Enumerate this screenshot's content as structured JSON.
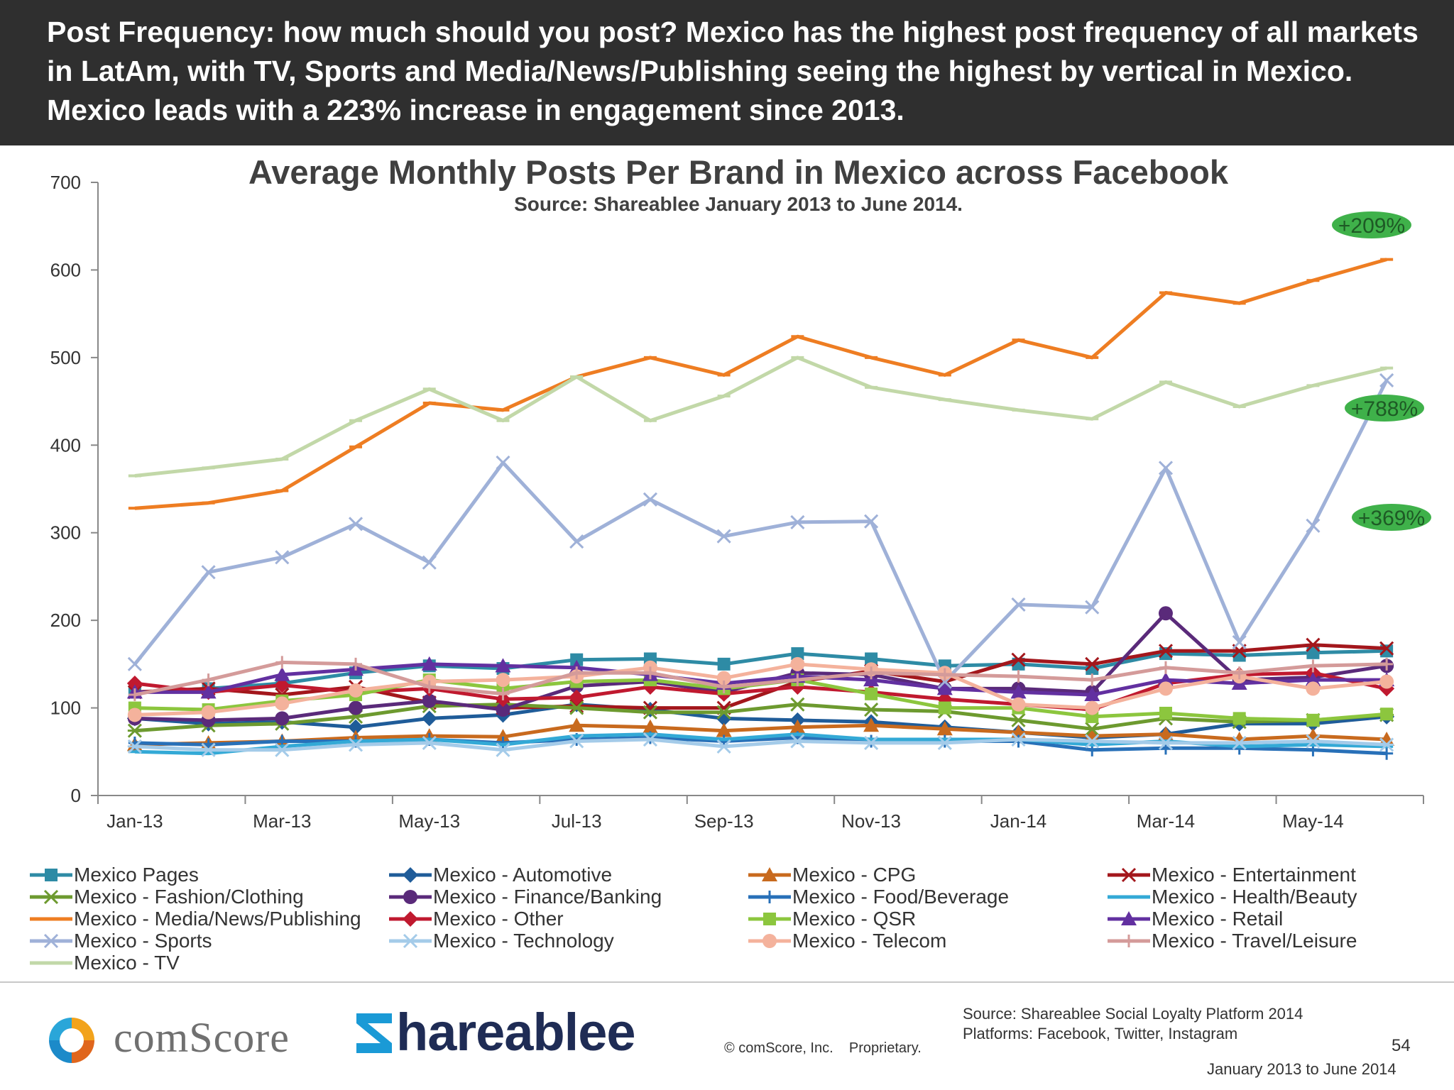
{
  "header": {
    "text": "Post Frequency: how much should you post? Mexico has the highest post frequency of all markets in LatAm, with TV, Sports and Media/News/Publishing seeing the highest by vertical in Mexico. Mexico leads with a 223% increase in engagement since 2013."
  },
  "chart_data": {
    "type": "line",
    "title": "Average Monthly Posts Per Brand in Mexico across Facebook",
    "subtitle": "Source: Shareablee January 2013 to June 2014.",
    "xlabel": "",
    "ylabel": "",
    "ylim": [
      0,
      700
    ],
    "yticks": [
      "0",
      "100",
      "200",
      "300",
      "400",
      "500",
      "600",
      "700"
    ],
    "x": [
      "Jan-13",
      "Feb-13",
      "Mar-13",
      "Apr-13",
      "May-13",
      "Jun-13",
      "Jul-13",
      "Aug-13",
      "Sep-13",
      "Oct-13",
      "Nov-13",
      "Dec-13",
      "Jan-14",
      "Feb-14",
      "Mar-14",
      "Apr-14",
      "May-14",
      "Jun-14"
    ],
    "xtick_labels": [
      "Jan-13",
      "Mar-13",
      "May-13",
      "Jul-13",
      "Sep-13",
      "Nov-13",
      "Jan-14",
      "Mar-14",
      "May-14"
    ],
    "legend_position": "bottom",
    "grid": false,
    "series": [
      {
        "name": "Mexico Pages",
        "color": "#2e8ba5",
        "marker": "square",
        "values": [
          118,
          122,
          128,
          140,
          148,
          145,
          155,
          156,
          150,
          162,
          156,
          148,
          150,
          145,
          162,
          160,
          163,
          165
        ]
      },
      {
        "name": "Mexico - Automotive",
        "color": "#1f5c99",
        "marker": "diamond",
        "values": [
          88,
          82,
          84,
          78,
          88,
          92,
          104,
          98,
          88,
          86,
          84,
          78,
          72,
          66,
          70,
          82,
          82,
          90
        ]
      },
      {
        "name": "Mexico - CPG",
        "color": "#c86a1e",
        "marker": "triangle",
        "values": [
          58,
          60,
          62,
          66,
          68,
          67,
          80,
          78,
          74,
          78,
          80,
          76,
          72,
          68,
          70,
          64,
          68,
          64
        ]
      },
      {
        "name": "Mexico - Entertainment",
        "color": "#a3171c",
        "marker": "x",
        "values": [
          118,
          122,
          115,
          124,
          106,
          100,
          102,
          100,
          100,
          130,
          142,
          130,
          155,
          150,
          165,
          165,
          172,
          168
        ]
      },
      {
        "name": "Mexico - Fashion/Clothing",
        "color": "#6d9a2f",
        "marker": "asterisk",
        "values": [
          74,
          80,
          82,
          90,
          102,
          104,
          100,
          95,
          95,
          104,
          98,
          96,
          86,
          76,
          88,
          84,
          86,
          92
        ]
      },
      {
        "name": "Mexico - Finance/Banking",
        "color": "#5a2a7a",
        "marker": "circle",
        "values": [
          88,
          86,
          88,
          100,
          108,
          98,
          125,
          130,
          118,
          140,
          138,
          122,
          122,
          118,
          208,
          132,
          135,
          148
        ]
      },
      {
        "name": "Mexico - Food/Beverage",
        "color": "#2870b8",
        "marker": "plus",
        "values": [
          60,
          58,
          62,
          62,
          64,
          60,
          64,
          66,
          62,
          66,
          62,
          62,
          62,
          52,
          54,
          54,
          52,
          48
        ]
      },
      {
        "name": "Mexico - Health/Beauty",
        "color": "#33a9d6",
        "marker": "dash",
        "values": [
          50,
          48,
          56,
          62,
          64,
          58,
          68,
          70,
          64,
          70,
          64,
          64,
          64,
          58,
          62,
          56,
          58,
          56
        ]
      },
      {
        "name": "Mexico - Media/News/Publishing",
        "color": "#ee7d22",
        "marker": "dash",
        "values": [
          328,
          334,
          348,
          398,
          448,
          440,
          478,
          500,
          480,
          524,
          500,
          480,
          520,
          500,
          574,
          562,
          588,
          612
        ]
      },
      {
        "name": "Mexico - Other",
        "color": "#c0192f",
        "marker": "diamond",
        "values": [
          128,
          118,
          126,
          118,
          122,
          110,
          112,
          124,
          116,
          124,
          118,
          110,
          104,
          98,
          128,
          138,
          140,
          122
        ]
      },
      {
        "name": "Mexico - QSR",
        "color": "#8cc63e",
        "marker": "square",
        "values": [
          100,
          98,
          108,
          115,
          132,
          122,
          130,
          132,
          122,
          132,
          116,
          100,
          100,
          90,
          94,
          88,
          86,
          93
        ]
      },
      {
        "name": "Mexico - Retail",
        "color": "#6230a0",
        "marker": "triangle",
        "values": [
          118,
          118,
          138,
          144,
          150,
          148,
          146,
          138,
          128,
          136,
          132,
          122,
          118,
          115,
          132,
          128,
          132,
          132
        ]
      },
      {
        "name": "Mexico - Sports",
        "color": "#9fb1d8",
        "marker": "x",
        "values": [
          150,
          255,
          272,
          310,
          266,
          380,
          290,
          338,
          296,
          312,
          313,
          130,
          218,
          215,
          374,
          175,
          308,
          474
        ]
      },
      {
        "name": "Mexico - Technology",
        "color": "#a4cbe9",
        "marker": "asterisk",
        "values": [
          56,
          52,
          52,
          58,
          60,
          52,
          62,
          64,
          56,
          62,
          60,
          60,
          64,
          62,
          60,
          60,
          62,
          58
        ]
      },
      {
        "name": "Mexico - Telecom",
        "color": "#f4b29c",
        "marker": "circle",
        "values": [
          92,
          95,
          105,
          120,
          130,
          132,
          136,
          146,
          134,
          150,
          144,
          140,
          104,
          100,
          122,
          136,
          122,
          130
        ]
      },
      {
        "name": "Mexico - Travel/Leisure",
        "color": "#d49b9a",
        "marker": "plus",
        "values": [
          115,
          132,
          152,
          150,
          124,
          116,
          140,
          140,
          124,
          132,
          140,
          138,
          136,
          132,
          146,
          140,
          148,
          150
        ]
      },
      {
        "name": "Mexico - TV",
        "color": "#c2d8a8",
        "marker": "dash",
        "values": [
          365,
          374,
          384,
          428,
          464,
          428,
          478,
          428,
          456,
          500,
          466,
          452,
          440,
          430,
          472,
          444,
          468,
          488
        ]
      }
    ],
    "annotations": [
      {
        "text": "+209%",
        "series": "Mexico - Media/News/Publishing"
      },
      {
        "text": "+788%",
        "series": "Mexico - Sports"
      },
      {
        "text": "+369%",
        "series": "Mexico - TV"
      }
    ]
  },
  "footer": {
    "comscore_logo_text": "comScore",
    "shareablee_logo_text": "hareablee",
    "copyright": "© comScore, Inc.    Proprietary.",
    "source_line1": "Source: Shareablee Social Loyalty Platform 2014",
    "source_line2": "Platforms: Facebook, Twitter, Instagram",
    "page_number": "54",
    "date_range": "January 2013 to June 2014"
  }
}
